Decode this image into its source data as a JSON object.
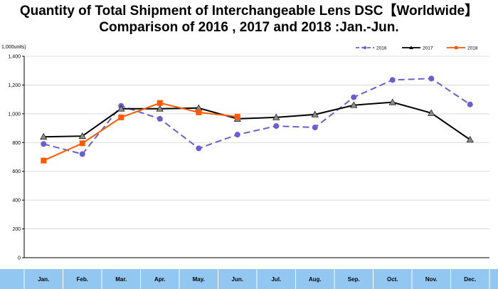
{
  "title_line1": "Quantity of Total Shipment of Interchangeable Lens DSC【Worldwide】",
  "title_line2": "Comparison of 2016 , 2017 and 2018 :Jan.-Jun.",
  "chart_data": {
    "type": "line",
    "title": "Quantity of Total Shipment of Interchangeable Lens DSC【Worldwide】 Comparison of 2016 , 2017 and 2018 :Jan.-Jun.",
    "unit_label": "1,000units)",
    "categories": [
      "Jan.",
      "Feb.",
      "Mar.",
      "Apr.",
      "May.",
      "Jun.",
      "Jul.",
      "Aug.",
      "Sep.",
      "Oct.",
      "Nov.",
      "Dec."
    ],
    "ylim": [
      0,
      1400
    ],
    "yticks": [
      "0",
      "200",
      "400",
      "600",
      "800",
      "1,000",
      "1,200",
      "1,400"
    ],
    "ytick_values": [
      0,
      200,
      400,
      600,
      800,
      1000,
      1200,
      1400
    ],
    "grid": true,
    "legend_position": "top-right",
    "series": [
      {
        "name": "2016",
        "color": "#6b5fd0",
        "style": "dashed",
        "marker": "circle",
        "values": [
          790,
          720,
          1055,
          965,
          760,
          855,
          915,
          905,
          1115,
          1235,
          1245,
          1065
        ]
      },
      {
        "name": "2017",
        "color": "#000000",
        "style": "solid",
        "marker": "triangle",
        "values": [
          840,
          845,
          1035,
          1035,
          1040,
          965,
          975,
          995,
          1060,
          1080,
          1005,
          820
        ]
      },
      {
        "name": "2018",
        "color": "#ff5a00",
        "style": "solid",
        "marker": "square",
        "values": [
          675,
          795,
          975,
          1075,
          1010,
          980,
          null,
          null,
          null,
          null,
          null,
          null
        ]
      }
    ]
  },
  "colors": {
    "month_band": "#92c7f2",
    "grid": "#d0d0d0",
    "axis": "#000000"
  }
}
